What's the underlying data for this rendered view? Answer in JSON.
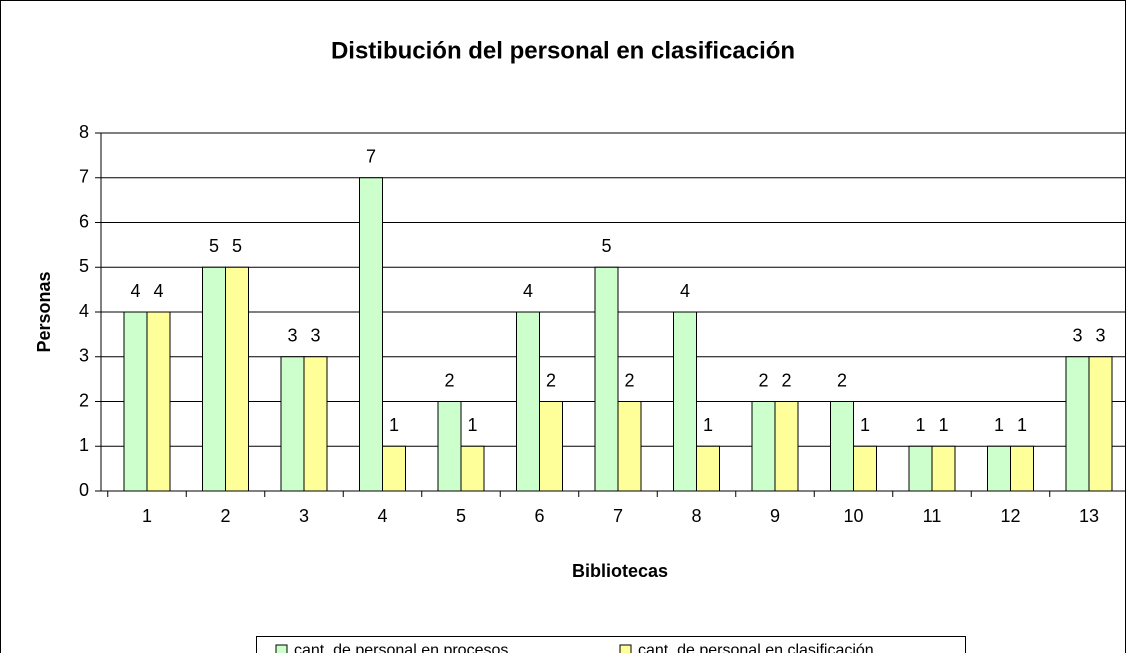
{
  "chart_data": {
    "type": "bar",
    "title": "Distibución del personal en clasificación",
    "x_label": "Bibliotecas",
    "y_label": "Personas",
    "categories": [
      "1",
      "2",
      "3",
      "4",
      "5",
      "6",
      "7",
      "8",
      "9",
      "10",
      "11",
      "12",
      "13"
    ],
    "series": [
      {
        "name": "cant. de personal en procesos",
        "color": "#ccffcc",
        "values": [
          4,
          5,
          3,
          7,
          2,
          4,
          5,
          4,
          2,
          2,
          1,
          1,
          3
        ]
      },
      {
        "name": "cant. de personal en clasificación",
        "color": "#ffff99",
        "values": [
          4,
          5,
          3,
          1,
          1,
          2,
          2,
          1,
          2,
          1,
          1,
          1,
          3
        ]
      }
    ],
    "ylim": [
      0,
      8
    ],
    "yticks": [
      0,
      1,
      2,
      3,
      4,
      5,
      6,
      7,
      8
    ],
    "grid": true,
    "legend": "bottom"
  }
}
